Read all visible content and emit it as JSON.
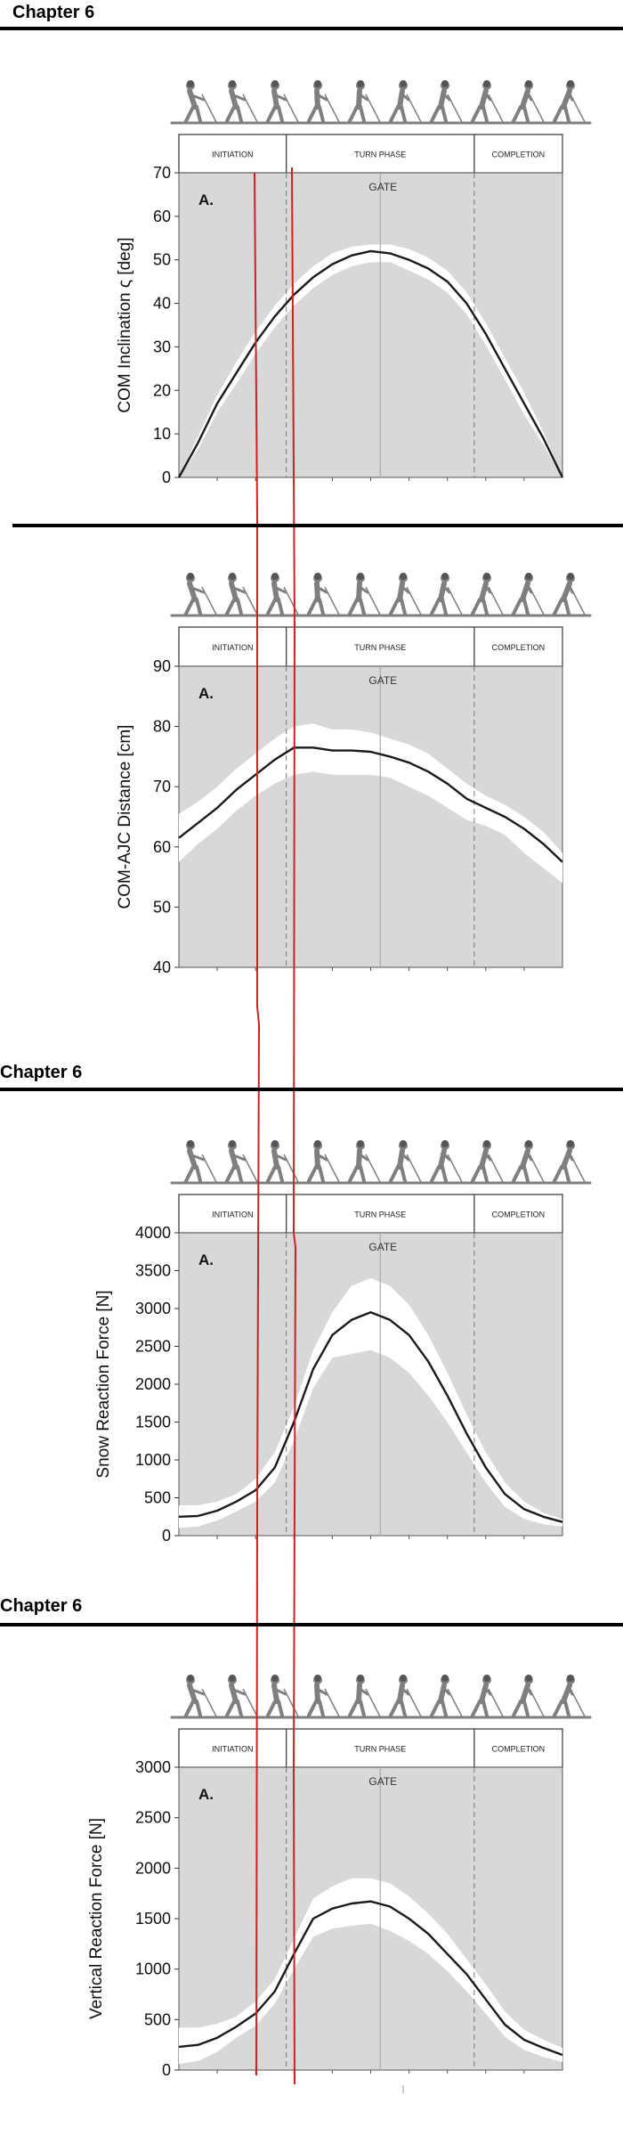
{
  "chapters": [
    "Chapter 6",
    "Chapter 6",
    "Chapter 6"
  ],
  "chart_data": [
    {
      "type": "area",
      "ylabel": "COM Inclination ς [deg]",
      "panel_letter": "A.",
      "phases": [
        "INITIATION",
        "TURN PHASE",
        "COMPLETION"
      ],
      "gate_label": "GATE",
      "ylim": [
        0,
        70
      ],
      "yticks": [
        0,
        10,
        20,
        30,
        40,
        50,
        60,
        70
      ],
      "xlim": [
        0,
        100
      ],
      "phase_boundaries": [
        28,
        77
      ],
      "gate_x": 52.5,
      "grid": false,
      "series": [
        {
          "x": [
            0,
            5,
            10,
            15,
            20,
            25,
            30,
            35,
            40,
            45,
            50,
            55,
            60,
            65,
            70,
            75,
            80,
            85,
            90,
            95,
            100
          ],
          "mean": [
            0,
            8,
            17,
            24,
            31,
            37,
            42,
            46,
            49,
            51,
            52,
            51.5,
            50,
            48,
            45,
            40,
            33,
            25,
            17,
            9,
            0
          ],
          "upper": [
            0,
            9.5,
            19,
            26.5,
            33.5,
            39.5,
            44.5,
            48.5,
            51.5,
            53,
            53.5,
            53.5,
            52.5,
            50.5,
            47.5,
            42.5,
            35.5,
            27.5,
            19.5,
            10.5,
            0
          ],
          "lower": [
            0,
            6.5,
            15,
            21.5,
            28.5,
            34.5,
            39.5,
            43.5,
            46.5,
            48.5,
            49.5,
            49.5,
            47.5,
            45.5,
            42.5,
            37.5,
            30.5,
            22.5,
            14.5,
            7.5,
            0
          ]
        }
      ]
    },
    {
      "type": "area",
      "ylabel": "COM-AJC Distance [cm]",
      "panel_letter": "A.",
      "phases": [
        "INITIATION",
        "TURN PHASE",
        "COMPLETION"
      ],
      "gate_label": "GATE",
      "ylim": [
        40,
        90
      ],
      "yticks": [
        40,
        50,
        60,
        70,
        80,
        90
      ],
      "xlim": [
        0,
        100
      ],
      "phase_boundaries": [
        28,
        77
      ],
      "gate_x": 52.5,
      "grid": false,
      "series": [
        {
          "x": [
            0,
            5,
            10,
            15,
            20,
            25,
            30,
            35,
            40,
            45,
            50,
            55,
            60,
            65,
            70,
            75,
            80,
            85,
            90,
            95,
            100
          ],
          "mean": [
            61.5,
            64,
            66.5,
            69.5,
            72,
            74.5,
            76.5,
            76.5,
            76,
            76,
            75.8,
            75,
            74,
            72.5,
            70.5,
            68,
            66.5,
            65,
            63,
            60.5,
            57.5
          ],
          "upper": [
            65.5,
            67.5,
            70,
            73,
            75.5,
            78,
            80,
            80.5,
            79.5,
            79.5,
            79,
            78,
            77,
            75.5,
            73,
            70.5,
            68.5,
            67,
            65,
            62.5,
            59
          ],
          "lower": [
            57.5,
            60.5,
            63,
            66,
            68.5,
            70.5,
            72,
            72.5,
            72,
            72,
            72,
            71.5,
            70,
            68.5,
            66.5,
            64.5,
            63.5,
            62,
            59,
            56.5,
            54
          ]
        }
      ]
    },
    {
      "type": "area",
      "ylabel": "Snow Reaction Force [N]",
      "panel_letter": "A.",
      "phases": [
        "INITIATION",
        "TURN PHASE",
        "COMPLETION"
      ],
      "gate_label": "GATE",
      "ylim": [
        0,
        4000
      ],
      "yticks": [
        0,
        500,
        1000,
        1500,
        2000,
        2500,
        3000,
        3500,
        4000
      ],
      "xlim": [
        0,
        100
      ],
      "phase_boundaries": [
        28,
        77
      ],
      "gate_x": 52.5,
      "grid": false,
      "series": [
        {
          "x": [
            0,
            5,
            10,
            15,
            20,
            25,
            30,
            35,
            40,
            45,
            50,
            55,
            60,
            65,
            70,
            75,
            80,
            85,
            90,
            95,
            100
          ],
          "mean": [
            250,
            260,
            330,
            450,
            600,
            900,
            1500,
            2200,
            2650,
            2850,
            2950,
            2850,
            2650,
            2300,
            1850,
            1350,
            900,
            550,
            350,
            250,
            180
          ],
          "upper": [
            400,
            400,
            450,
            550,
            750,
            1100,
            1700,
            2450,
            2950,
            3300,
            3400,
            3300,
            3050,
            2650,
            2150,
            1600,
            1100,
            700,
            450,
            300,
            220
          ],
          "lower": [
            100,
            120,
            200,
            320,
            450,
            700,
            1250,
            1950,
            2350,
            2400,
            2450,
            2350,
            2150,
            1850,
            1500,
            1100,
            700,
            380,
            220,
            150,
            120
          ]
        }
      ]
    },
    {
      "type": "area",
      "ylabel": "Vertical Reaction Force  [N]",
      "panel_letter": "A.",
      "phases": [
        "INITIATION",
        "TURN PHASE",
        "COMPLETION"
      ],
      "gate_label": "GATE",
      "ylim": [
        0,
        3000
      ],
      "yticks": [
        0,
        500,
        1000,
        1500,
        2000,
        2500,
        3000
      ],
      "xlim": [
        0,
        100
      ],
      "phase_boundaries": [
        28,
        77
      ],
      "gate_x": 52.5,
      "grid": false,
      "series": [
        {
          "x": [
            0,
            5,
            10,
            15,
            20,
            25,
            30,
            35,
            40,
            45,
            50,
            55,
            60,
            65,
            70,
            75,
            80,
            85,
            90,
            95,
            100
          ],
          "mean": [
            230,
            250,
            320,
            430,
            560,
            780,
            1150,
            1500,
            1600,
            1650,
            1670,
            1620,
            1500,
            1350,
            1150,
            950,
            700,
            450,
            300,
            220,
            150
          ],
          "upper": [
            420,
            420,
            460,
            530,
            680,
            900,
            1300,
            1700,
            1820,
            1900,
            1900,
            1850,
            1720,
            1550,
            1350,
            1100,
            850,
            580,
            400,
            300,
            220
          ],
          "lower": [
            60,
            90,
            180,
            320,
            440,
            660,
            1000,
            1320,
            1400,
            1430,
            1450,
            1380,
            1280,
            1150,
            980,
            780,
            560,
            330,
            200,
            130,
            80
          ]
        }
      ]
    }
  ],
  "colors": {
    "plot_bg": "#d8d8d8",
    "band": "#ffffff",
    "mean_line": "#1a1a1a",
    "boundary": "#777777",
    "gate_line": "#aaaaaa",
    "overlay_line": "#cc2222",
    "skier_figure": "#7f7f7f"
  },
  "overlay_annotation": "two hand-drawn red vertical lines spanning all four panels"
}
